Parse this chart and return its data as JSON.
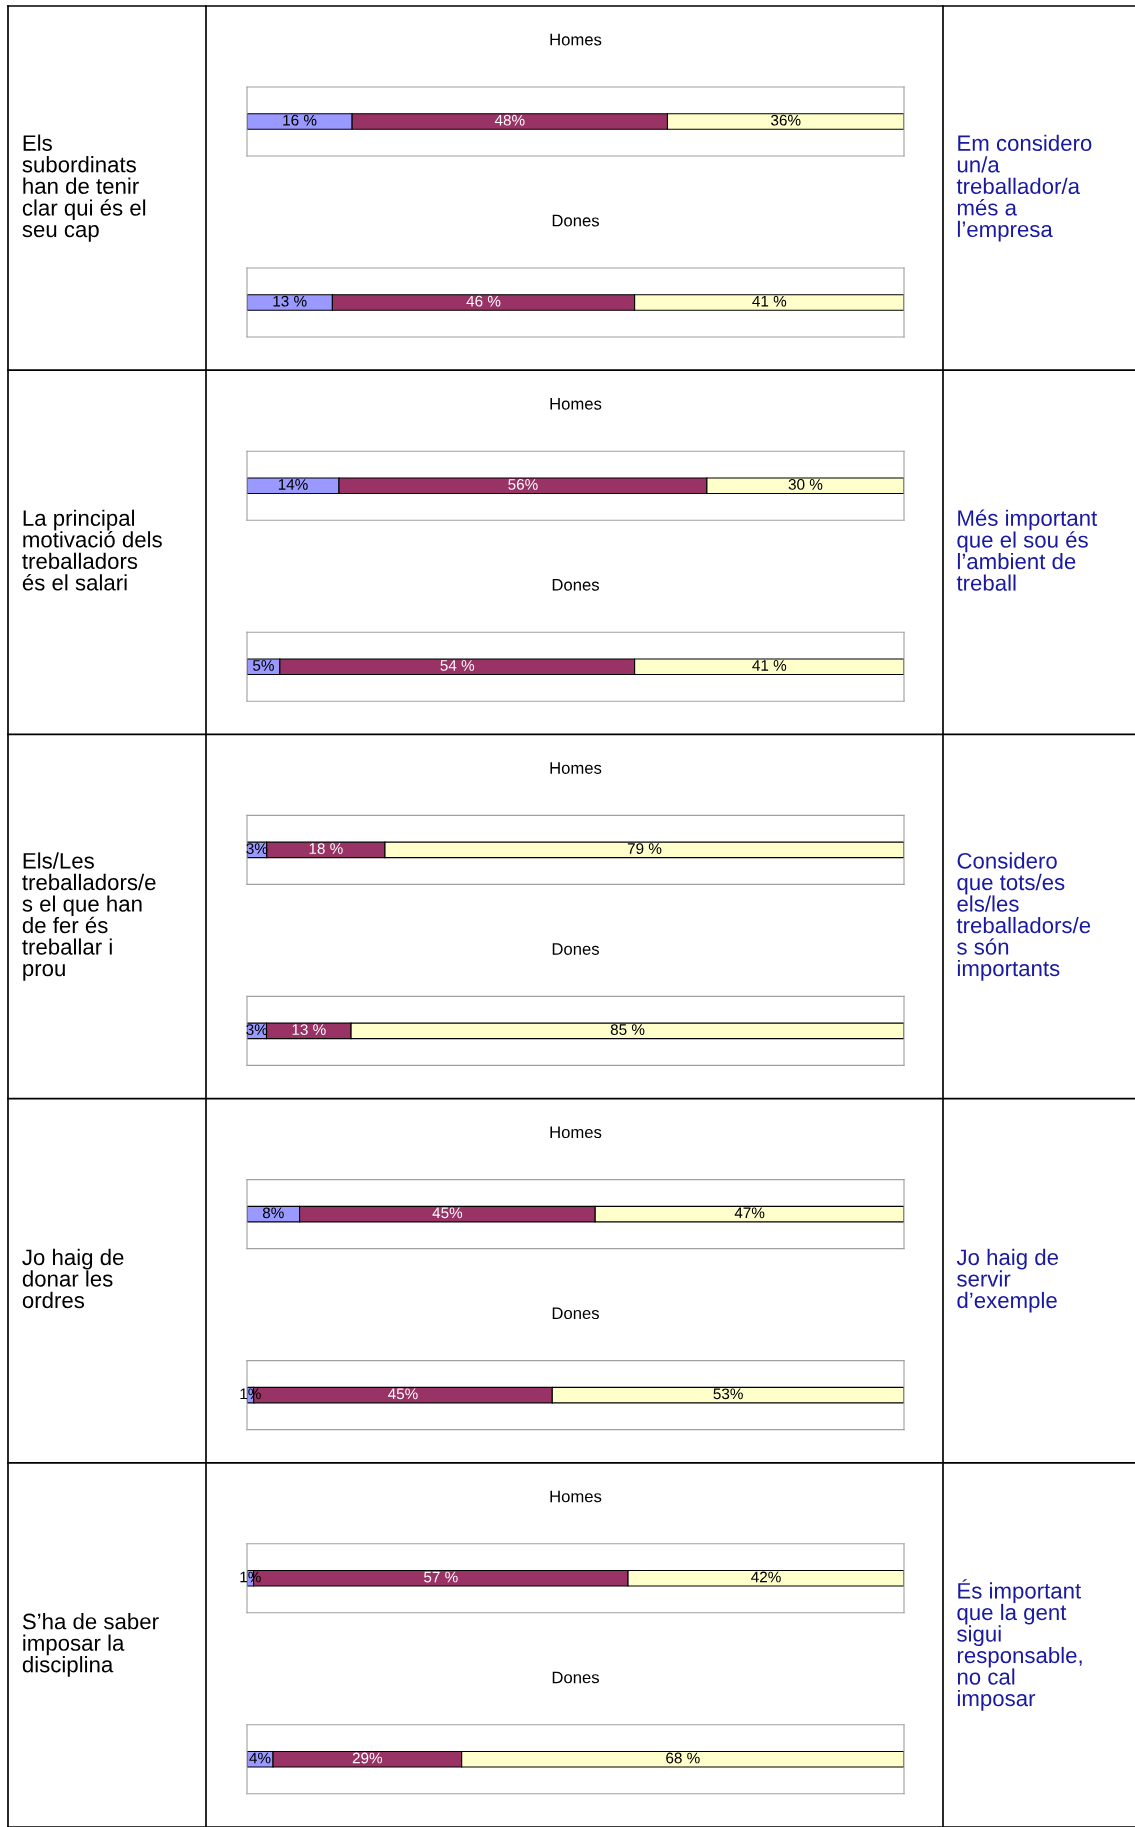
{
  "chart_data": [
    {
      "type": "other",
      "annotations": [
        "Els\nsubordinats\nhan de tenir\nclar qui és el\nseu cap"
      ]
    },
    {
      "type": "bar",
      "orientation": "horizontal",
      "stacked": true,
      "tick_labels": false,
      "title": "Homes",
      "categories": [
        null
      ],
      "series": [
        {
          "color": "#9999ff",
          "values": [
            16
          ],
          "value_labels": [
            "16 %"
          ]
        },
        {
          "color": "#993366",
          "values": [
            48
          ],
          "value_labels": [
            "48%"
          ]
        },
        {
          "color": "#ffffcc",
          "values": [
            36
          ],
          "value_labels": [
            "36%"
          ]
        }
      ]
    },
    {
      "type": "bar",
      "orientation": "horizontal",
      "stacked": true,
      "tick_labels": false,
      "title": "Dones",
      "categories": [
        null
      ],
      "series": [
        {
          "color": "#9999ff",
          "values": [
            13
          ],
          "value_labels": [
            "13 %"
          ]
        },
        {
          "color": "#993366",
          "values": [
            46
          ],
          "value_labels": [
            "46 %"
          ]
        },
        {
          "color": "#ffffcc",
          "values": [
            41
          ],
          "value_labels": [
            "41 %"
          ]
        }
      ]
    },
    {
      "type": "other",
      "annotations": [
        "Em considero\nun/a\ntreballador/a\nmés a\nl’empresa"
      ]
    },
    {
      "type": "other",
      "annotations": [
        "La principal\nmotivació dels\ntreballadors\nés el salari"
      ]
    },
    {
      "type": "bar",
      "orientation": "horizontal",
      "stacked": true,
      "tick_labels": false,
      "title": "Homes",
      "categories": [
        null
      ],
      "series": [
        {
          "color": "#9999ff",
          "values": [
            14
          ],
          "value_labels": [
            "14%"
          ]
        },
        {
          "color": "#993366",
          "values": [
            56
          ],
          "value_labels": [
            "56%"
          ]
        },
        {
          "color": "#ffffcc",
          "values": [
            30
          ],
          "value_labels": [
            "30 %"
          ]
        }
      ]
    },
    {
      "type": "bar",
      "orientation": "horizontal",
      "stacked": true,
      "tick_labels": false,
      "title": "Dones",
      "categories": [
        null
      ],
      "series": [
        {
          "color": "#9999ff",
          "values": [
            5
          ],
          "value_labels": [
            "5%"
          ]
        },
        {
          "color": "#993366",
          "values": [
            54
          ],
          "value_labels": [
            "54 %"
          ]
        },
        {
          "color": "#ffffcc",
          "values": [
            41
          ],
          "value_labels": [
            "41 %"
          ]
        }
      ]
    },
    {
      "type": "other",
      "annotations": [
        "Més important\nque el sou és\nl’ambient de\ntreball"
      ]
    },
    {
      "type": "other",
      "annotations": [
        "Els/Les\ntreballadors/e\ns el que han\nde fer és\ntreballar i\nprou"
      ]
    },
    {
      "type": "bar",
      "orientation": "horizontal",
      "stacked": true,
      "tick_labels": false,
      "title": "Homes",
      "categories": [
        null
      ],
      "series": [
        {
          "color": "#9999ff",
          "values": [
            3
          ],
          "value_labels": [
            "3%"
          ]
        },
        {
          "color": "#993366",
          "values": [
            18
          ],
          "value_labels": [
            "18 %"
          ]
        },
        {
          "color": "#ffffcc",
          "values": [
            79
          ],
          "value_labels": [
            "79 %"
          ]
        }
      ]
    },
    {
      "type": "bar",
      "orientation": "horizontal",
      "stacked": true,
      "tick_labels": false,
      "title": "Dones",
      "categories": [
        null
      ],
      "series": [
        {
          "color": "#9999ff",
          "values": [
            3
          ],
          "value_labels": [
            "3%"
          ]
        },
        {
          "color": "#993366",
          "values": [
            13
          ],
          "value_labels": [
            "13 %"
          ]
        },
        {
          "color": "#ffffcc",
          "values": [
            85
          ],
          "value_labels": [
            "85 %"
          ]
        }
      ]
    },
    {
      "type": "other",
      "annotations": [
        "Considero\nque tots/es\nels/les\ntreballadors/e\ns són\nimportants"
      ]
    },
    {
      "type": "other",
      "annotations": [
        "Jo haig de\ndonar les\nordres"
      ]
    },
    {
      "type": "bar",
      "orientation": "horizontal",
      "stacked": true,
      "tick_labels": false,
      "title": "Homes",
      "categories": [
        null
      ],
      "series": [
        {
          "color": "#9999ff",
          "values": [
            8
          ],
          "value_labels": [
            "8%"
          ]
        },
        {
          "color": "#993366",
          "values": [
            45
          ],
          "value_labels": [
            "45%"
          ]
        },
        {
          "color": "#ffffcc",
          "values": [
            47
          ],
          "value_labels": [
            "47%"
          ]
        }
      ]
    },
    {
      "type": "bar",
      "orientation": "horizontal",
      "stacked": true,
      "tick_labels": false,
      "title": "Dones",
      "categories": [
        null
      ],
      "series": [
        {
          "color": "#9999ff",
          "values": [
            1
          ],
          "value_labels": [
            "1%"
          ]
        },
        {
          "color": "#993366",
          "values": [
            45
          ],
          "value_labels": [
            "45%"
          ]
        },
        {
          "color": "#ffffcc",
          "values": [
            53
          ],
          "value_labels": [
            "53%"
          ]
        }
      ]
    },
    {
      "type": "other",
      "annotations": [
        "Jo haig de\nservir\nd’exemple"
      ]
    },
    {
      "type": "other",
      "annotations": [
        "S’ha de saber\nimposar la\ndisciplina"
      ]
    },
    {
      "type": "bar",
      "orientation": "horizontal",
      "stacked": true,
      "tick_labels": false,
      "title": "Homes",
      "categories": [
        null
      ],
      "series": [
        {
          "color": "#9999ff",
          "values": [
            1
          ],
          "value_labels": [
            "1%"
          ]
        },
        {
          "color": "#993366",
          "values": [
            57
          ],
          "value_labels": [
            "57 %"
          ]
        },
        {
          "color": "#ffffcc",
          "values": [
            42
          ],
          "value_labels": [
            "42%"
          ]
        }
      ]
    },
    {
      "type": "bar",
      "orientation": "horizontal",
      "stacked": true,
      "tick_labels": false,
      "title": "Dones",
      "categories": [
        null
      ],
      "series": [
        {
          "color": "#9999ff",
          "values": [
            4
          ],
          "value_labels": [
            "4%"
          ]
        },
        {
          "color": "#993366",
          "values": [
            29
          ],
          "value_labels": [
            "29%"
          ]
        },
        {
          "color": "#ffffcc",
          "values": [
            68
          ],
          "value_labels": [
            "68 %"
          ]
        }
      ]
    },
    {
      "type": "other",
      "annotations": [
        "És important\nque la gent\nsigui\nresponsable,\nno cal\nimposar"
      ]
    }
  ]
}
